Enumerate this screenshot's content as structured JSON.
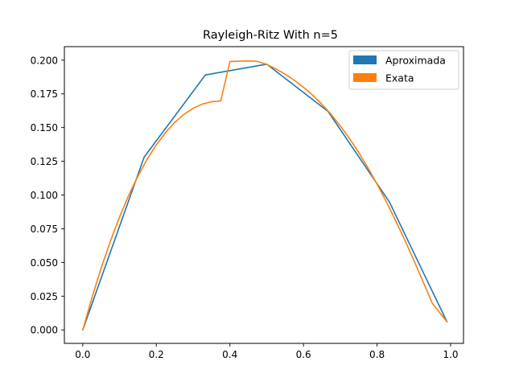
{
  "chart_data": {
    "type": "line",
    "title": "Rayleigh-Ritz With n=5",
    "xlabel": "",
    "ylabel": "",
    "xlim": [
      -0.05,
      1.035
    ],
    "ylim": [
      -0.01,
      0.21
    ],
    "xticks": [
      0.0,
      0.2,
      0.4,
      0.6,
      0.8,
      1.0
    ],
    "xtick_labels": [
      "0.0",
      "0.2",
      "0.4",
      "0.6",
      "0.8",
      "1.0"
    ],
    "yticks": [
      0.0,
      0.025,
      0.05,
      0.075,
      0.1,
      0.125,
      0.15,
      0.175,
      0.2
    ],
    "ytick_labels": [
      "0.000",
      "0.025",
      "0.050",
      "0.075",
      "0.100",
      "0.125",
      "0.150",
      "0.175",
      "0.200"
    ],
    "grid": false,
    "legend_position": "top-right",
    "series": [
      {
        "name": "Aproximada",
        "color": "#1f77b4",
        "x": [
          0.0,
          0.1667,
          0.3333,
          0.5,
          0.6667,
          0.8333,
          0.99
        ],
        "y": [
          0.0,
          0.128,
          0.189,
          0.197,
          0.162,
          0.095,
          0.006
        ]
      },
      {
        "name": "Exata",
        "color": "#ff7f0e",
        "x": [
          0.0,
          0.025,
          0.05,
          0.075,
          0.1,
          0.125,
          0.15,
          0.175,
          0.2,
          0.225,
          0.25,
          0.275,
          0.3,
          0.325,
          0.35,
          0.375,
          0.4,
          0.425,
          0.45,
          0.475,
          0.5,
          0.525,
          0.55,
          0.575,
          0.6,
          0.625,
          0.65,
          0.675,
          0.7,
          0.725,
          0.75,
          0.775,
          0.8,
          0.825,
          0.85,
          0.875,
          0.9,
          0.925,
          0.95,
          0.99
        ],
        "y": [
          0.0,
          0.0239,
          0.0458,
          0.0657,
          0.0837,
          0.0998,
          0.1141,
          0.1265,
          0.1372,
          0.1463,
          0.1538,
          0.1598,
          0.1643,
          0.1674,
          0.1692,
          0.1697,
          0.199,
          0.1992,
          0.1994,
          0.1991,
          0.1968,
          0.1935,
          0.1896,
          0.1851,
          0.1799,
          0.174,
          0.1673,
          0.1598,
          0.1513,
          0.1419,
          0.1316,
          0.1203,
          0.1081,
          0.0951,
          0.0813,
          0.0668,
          0.0516,
          0.0359,
          0.0198,
          0.006
        ]
      }
    ]
  }
}
